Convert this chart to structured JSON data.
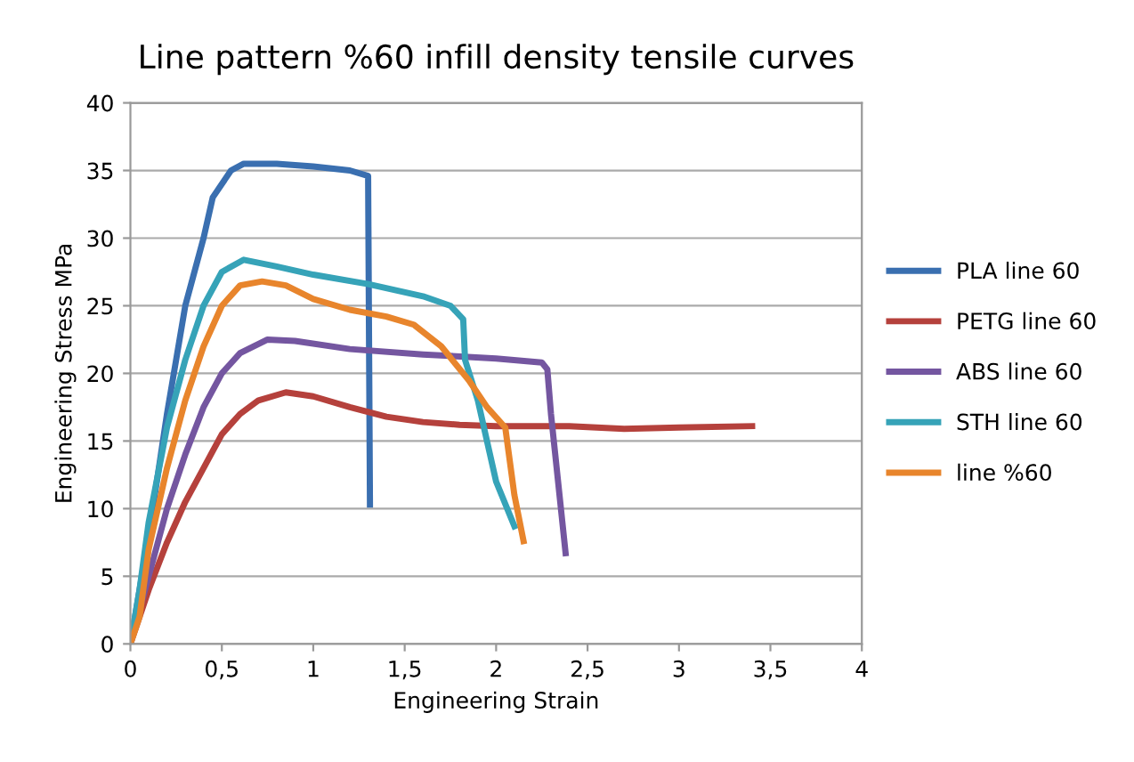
{
  "chart_data": {
    "type": "line",
    "title": "Line pattern %60 infill density tensile curves",
    "xlabel": "Engineering Strain",
    "ylabel": "Engineering Stress MPa",
    "xlim": [
      0,
      4
    ],
    "xticks": [
      0,
      {
        "value": 0.5,
        "label": "0,5"
      },
      1,
      {
        "value": 1.5,
        "label": "1,5"
      },
      2,
      {
        "value": 2.5,
        "label": "2,5"
      },
      3,
      {
        "value": 3.5,
        "label": "3,5"
      },
      4
    ],
    "ylim": [
      0,
      40
    ],
    "yticks": [
      0,
      5,
      10,
      15,
      20,
      25,
      30,
      35,
      40
    ],
    "grid": "y",
    "legend": "right",
    "marker": "none",
    "line_style": "solid",
    "series": [
      {
        "name": "PLA line 60",
        "color": "#3a6fb0",
        "x": [
          0,
          0.1,
          0.2,
          0.3,
          0.4,
          0.45,
          0.55,
          0.62,
          0.8,
          1.0,
          1.2,
          1.3,
          1.31
        ],
        "values": [
          0,
          8,
          17,
          25,
          30,
          33,
          35,
          35.5,
          35.5,
          35.3,
          35,
          34.6,
          10.3
        ]
      },
      {
        "name": "PETG line 60",
        "color": "#b5413c",
        "x": [
          0,
          0.1,
          0.2,
          0.3,
          0.4,
          0.5,
          0.6,
          0.7,
          0.85,
          1.0,
          1.2,
          1.4,
          1.6,
          1.8,
          2.0,
          2.4,
          2.7,
          3.0,
          3.4
        ],
        "values": [
          0,
          4,
          7.5,
          10.5,
          13,
          15.5,
          17,
          18,
          18.6,
          18.3,
          17.5,
          16.8,
          16.4,
          16.2,
          16.1,
          16.1,
          15.9,
          16,
          16.1
        ]
      },
      {
        "name": "ABS line 60",
        "color": "#7456a0",
        "x": [
          0,
          0.1,
          0.2,
          0.3,
          0.4,
          0.5,
          0.6,
          0.75,
          0.9,
          1.2,
          1.6,
          2.0,
          2.25,
          2.28,
          2.3,
          2.38
        ],
        "values": [
          0,
          5,
          10,
          14,
          17.5,
          20,
          21.5,
          22.5,
          22.4,
          21.8,
          21.4,
          21.1,
          20.8,
          20.3,
          17,
          6.7
        ]
      },
      {
        "name": "STH line 60",
        "color": "#36a3b8",
        "x": [
          0,
          0.05,
          0.1,
          0.2,
          0.3,
          0.4,
          0.5,
          0.62,
          0.8,
          1.0,
          1.3,
          1.6,
          1.75,
          1.82,
          1.83,
          1.9,
          2.0,
          2.1
        ],
        "values": [
          0,
          4,
          9,
          16,
          21,
          25,
          27.5,
          28.4,
          27.9,
          27.3,
          26.6,
          25.7,
          25,
          24,
          21,
          18,
          12,
          8.7
        ]
      },
      {
        "name": "line %60",
        "color": "#e8852c",
        "x": [
          0,
          0.05,
          0.1,
          0.2,
          0.3,
          0.4,
          0.5,
          0.6,
          0.72,
          0.85,
          1.0,
          1.2,
          1.4,
          1.55,
          1.7,
          1.85,
          1.95,
          2.05,
          2.1,
          2.15
        ],
        "values": [
          0,
          2,
          7,
          13,
          18,
          22,
          25,
          26.5,
          26.8,
          26.5,
          25.5,
          24.7,
          24.2,
          23.6,
          22,
          19.5,
          17.5,
          16,
          11,
          7.6
        ]
      }
    ]
  }
}
